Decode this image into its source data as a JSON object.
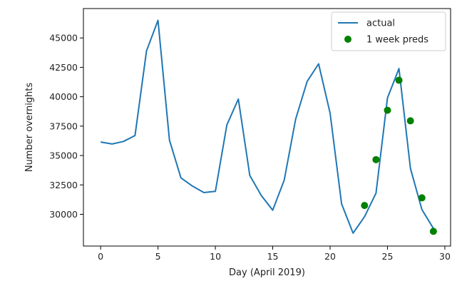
{
  "chart_data": {
    "type": "line",
    "title": "",
    "xlabel": "Day (April 2019)",
    "ylabel": "Number overnights",
    "xlim": [
      -1.5,
      30.5
    ],
    "ylim": [
      27300,
      47500
    ],
    "x_ticks": [
      0,
      5,
      10,
      15,
      20,
      25,
      30
    ],
    "y_ticks": [
      30000,
      32500,
      35000,
      37500,
      40000,
      42500,
      45000
    ],
    "grid": false,
    "legend_position": "top-right",
    "series": [
      {
        "name": "actual",
        "style": "line",
        "color": "#1f77b4",
        "x": [
          0,
          1,
          2,
          3,
          4,
          5,
          6,
          7,
          8,
          9,
          10,
          11,
          12,
          13,
          14,
          15,
          16,
          17,
          18,
          19,
          20,
          21,
          22,
          23,
          24,
          25,
          26,
          27,
          28,
          29
        ],
        "y": [
          36150,
          35980,
          36200,
          36700,
          43900,
          46500,
          36300,
          33100,
          32400,
          31850,
          31950,
          37600,
          39800,
          33300,
          31600,
          30350,
          32900,
          38100,
          41300,
          42800,
          38600,
          30900,
          28400,
          29800,
          31800,
          39900,
          42400,
          33900,
          30400,
          28800
        ]
      },
      {
        "name": "1 week preds",
        "style": "markers",
        "color": "#008000",
        "x": [
          23,
          24,
          25,
          26,
          27,
          28,
          29
        ],
        "y": [
          30750,
          34650,
          38850,
          41400,
          37950,
          31400,
          28550
        ]
      }
    ]
  }
}
